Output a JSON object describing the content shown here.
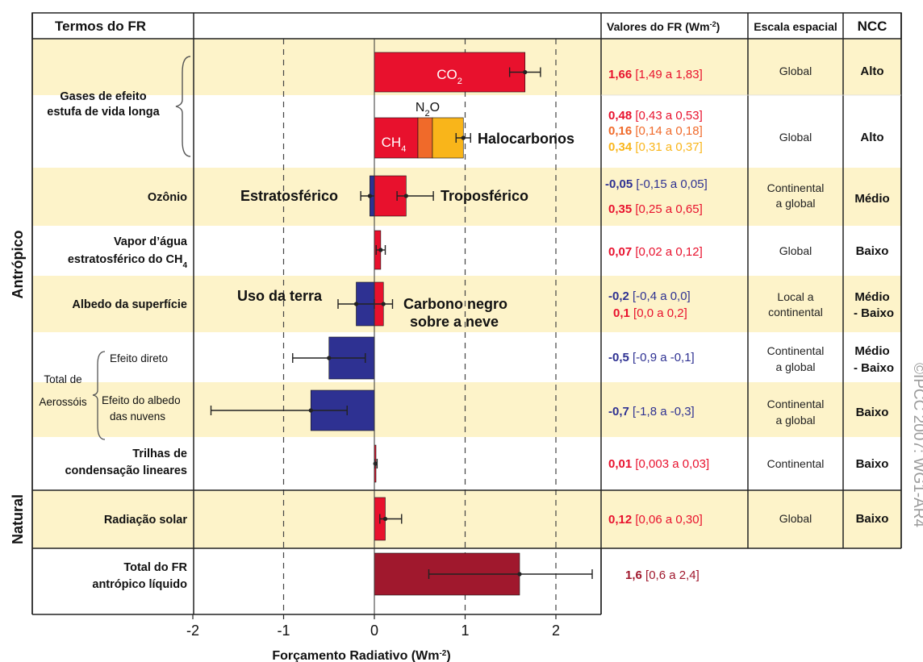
{
  "chart_data": {
    "type": "bar",
    "xlabel": "Forçamento Radiativo (Wm",
    "xlabel_sup": "-2",
    "xlabel_end": ")",
    "xlim": [
      -2,
      2
    ],
    "ticks": [
      "-2",
      "-1",
      "0",
      "1",
      "2"
    ],
    "gridlines": [
      -1,
      1,
      2
    ],
    "headers": {
      "terms": "Termos do FR",
      "values": "Valores do FR (Wm",
      "values_sup": "-2",
      "values_end": ")",
      "scale": "Escala espacial",
      "ncc": "NCC"
    },
    "side_labels": {
      "anthropic": "Antrópico",
      "natural": "Natural"
    },
    "rows": [
      {
        "term": [
          "Gases de efeito",
          "estufa de vida longa"
        ],
        "shade": true,
        "height": 2,
        "bars": [
          {
            "name": "CO2",
            "value": 1.66,
            "low": 1.49,
            "high": 1.83,
            "color": "#e8112d"
          },
          {
            "name": "CH4",
            "value": 0.48,
            "low": 0.43,
            "high": 0.53,
            "color": "#e8112d"
          },
          {
            "name": "N2O",
            "value": 0.16,
            "low": 0.14,
            "high": 0.18,
            "color": "#f06a2a"
          },
          {
            "name": "Halocarbonos",
            "value": 0.34,
            "low": 0.31,
            "high": 0.37,
            "color": "#f9b51a"
          }
        ],
        "labels": {
          "co2": "CO",
          "co2_sub": "2",
          "ch4": "CH",
          "ch4_sub": "4",
          "n2o": "N",
          "n2o_sub": "2",
          "n2o_end": "O",
          "halo": "Halocarbonos"
        },
        "values": [
          {
            "main": "1,66",
            "range": "[1,49 a 1,83]",
            "color": "#e8112d"
          },
          {
            "main": "0,48",
            "range": "[0,43 a 0,53]",
            "color": "#e8112d"
          },
          {
            "main": "0,16",
            "range": "[0,14 a 0,18]",
            "color": "#f06a2a"
          },
          {
            "main": "0,34",
            "range": "[0,31 a 0,37]",
            "color": "#f9b51a"
          }
        ],
        "scale": [
          "Global",
          "Global"
        ],
        "ncc": [
          "Alto",
          "Alto"
        ]
      },
      {
        "term": [
          "Ozônio"
        ],
        "shade": true,
        "bars": [
          {
            "name": "Estratosférico",
            "value": -0.05,
            "low": -0.15,
            "high": 0.05,
            "color": "#2e3192"
          },
          {
            "name": "Troposférico",
            "value": 0.35,
            "low": 0.25,
            "high": 0.65,
            "color": "#e8112d"
          }
        ],
        "labels": {
          "left": "Estratosférico",
          "right": "Troposférico"
        },
        "values": [
          {
            "main": "-0,05",
            "range": "[-0,15 a 0,05]",
            "color": "#2e3192"
          },
          {
            "main": "0,35",
            "range": "[0,25 a 0,65]",
            "color": "#e8112d"
          }
        ],
        "scale": [
          "Continental",
          "a global"
        ],
        "ncc": [
          "Médio"
        ]
      },
      {
        "term": [
          "Vapor d’água",
          "estratosférico do CH"
        ],
        "term_sub": "4",
        "shade": false,
        "bars": [
          {
            "name": "Vapor",
            "value": 0.07,
            "low": 0.02,
            "high": 0.12,
            "color": "#e8112d"
          }
        ],
        "values": [
          {
            "main": "0,07",
            "range": "[0,02 a 0,12]",
            "color": "#e8112d"
          }
        ],
        "scale": [
          "Global"
        ],
        "ncc": [
          "Baixo"
        ]
      },
      {
        "term": [
          "Albedo da superfície"
        ],
        "shade": true,
        "bars": [
          {
            "name": "Uso da terra",
            "value": -0.2,
            "low": -0.4,
            "high": 0.0,
            "color": "#2e3192"
          },
          {
            "name": "Carbono negro",
            "value": 0.1,
            "low": 0.0,
            "high": 0.2,
            "color": "#e8112d"
          }
        ],
        "labels": {
          "left": "Uso da terra",
          "right1": "Carbono negro",
          "right2": "sobre a neve"
        },
        "values": [
          {
            "main": "-0,2",
            "range": "[-0,4 a 0,0]",
            "color": "#2e3192"
          },
          {
            "main": "0,1",
            "range": "[0,0 a 0,2]",
            "color": "#e8112d"
          }
        ],
        "scale": [
          "Local a",
          "continental"
        ],
        "ncc": [
          "Médio",
          "- Baixo"
        ]
      },
      {
        "term": [
          "Efeito direto"
        ],
        "group": "aer",
        "shade": false,
        "bars": [
          {
            "name": "Efeito direto",
            "value": -0.5,
            "low": -0.9,
            "high": -0.1,
            "color": "#2e3192"
          }
        ],
        "values": [
          {
            "main": "-0,5",
            "range": "[-0,9 a -0,1]",
            "color": "#2e3192"
          }
        ],
        "scale": [
          "Continental",
          "a global"
        ],
        "ncc": [
          "Médio",
          "- Baixo"
        ]
      },
      {
        "term": [
          "Efeito do albedo",
          "das nuvens"
        ],
        "group": "aer",
        "shade": true,
        "bars": [
          {
            "name": "Albedo das nuvens",
            "value": -0.7,
            "low": -1.8,
            "high": -0.3,
            "color": "#2e3192"
          }
        ],
        "values": [
          {
            "main": "-0,7",
            "range": "[-1,8 a -0,3]",
            "color": "#2e3192"
          }
        ],
        "scale": [
          "Continental",
          "a global"
        ],
        "ncc": [
          "Baixo"
        ]
      },
      {
        "term": [
          "Trilhas de",
          "condensação lineares"
        ],
        "shade": false,
        "bars": [
          {
            "name": "Trilhas",
            "value": 0.01,
            "low": 0.003,
            "high": 0.03,
            "color": "#e8112d"
          }
        ],
        "values": [
          {
            "main": "0,01",
            "range": "[0,003 a 0,03]",
            "color": "#e8112d"
          }
        ],
        "scale": [
          "Continental"
        ],
        "ncc": [
          "Baixo"
        ]
      },
      {
        "term": [
          "Radiação solar"
        ],
        "shade": true,
        "natural": true,
        "bars": [
          {
            "name": "Solar",
            "value": 0.12,
            "low": 0.06,
            "high": 0.3,
            "color": "#e8112d"
          }
        ],
        "values": [
          {
            "main": "0,12",
            "range": "[0,06 a 0,30]",
            "color": "#e8112d"
          }
        ],
        "scale": [
          "Global"
        ],
        "ncc": [
          "Baixo"
        ]
      },
      {
        "term": [
          "Total do FR",
          "antrópico líquido"
        ],
        "shade": false,
        "total": true,
        "bars": [
          {
            "name": "Total",
            "value": 1.6,
            "low": 0.6,
            "high": 2.4,
            "color": "#a0182d"
          }
        ],
        "values": [
          {
            "main": "1,6",
            "range": "[0,6 a 2,4]",
            "color": "#a0182d"
          }
        ],
        "scale": [],
        "ncc": []
      }
    ],
    "aerosol_group": [
      "Total de",
      "Aerossóis"
    ],
    "credit": "©IPCC 2007: WG1-AR4"
  }
}
